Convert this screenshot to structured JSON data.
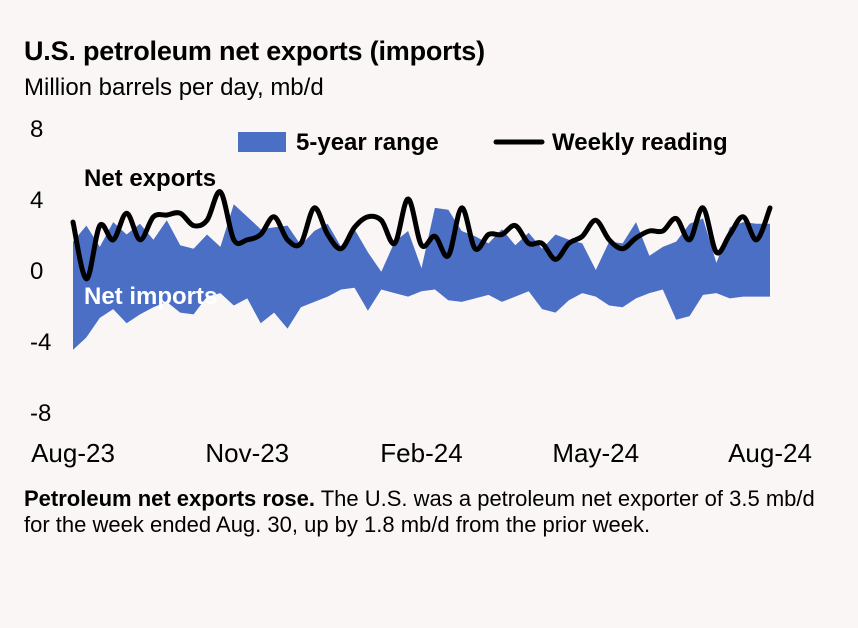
{
  "title": "U.S. petroleum net exports (imports)",
  "subtitle": "Million barrels per day, mb/d",
  "caption_bold": "Petroleum net exports rose.",
  "caption_text": " The U.S. was a petroleum net exporter of 3.5 mb/d for the week ended Aug. 30, up by 1.8 mb/d from the prior week.",
  "colors": {
    "range": "#4a6fc4",
    "line": "#000000",
    "background": "#fbf6f6"
  },
  "chart_data": {
    "type": "area",
    "title": "U.S. petroleum net exports (imports)",
    "ylabel": "Million barrels per day, mb/d",
    "ylim": [
      -8,
      8
    ],
    "yticks": [
      8,
      4,
      0,
      -4,
      -8
    ],
    "xtick_labels": [
      "Aug-23",
      "Nov-23",
      "Feb-24",
      "May-24",
      "Aug-24"
    ],
    "xtick_weeks": [
      0,
      13,
      26,
      39,
      52
    ],
    "annotations": [
      "Net exports",
      "Net imports"
    ],
    "legend": [
      "5-year range",
      "Weekly reading"
    ],
    "series": [
      {
        "name": "5-year range (upper)",
        "x": [
          0,
          1,
          2,
          3,
          4,
          5,
          6,
          7,
          8,
          9,
          10,
          11,
          12,
          13,
          14,
          15,
          16,
          17,
          18,
          19,
          20,
          21,
          22,
          23,
          24,
          25,
          26,
          27,
          28,
          29,
          30,
          31,
          32,
          33,
          34,
          35,
          36,
          37,
          38,
          39,
          40,
          41,
          42,
          43,
          44,
          45,
          46,
          47,
          48,
          49,
          50,
          51,
          52
        ],
        "values": [
          1.6,
          2.5,
          1.3,
          2.7,
          2.0,
          2.6,
          1.7,
          2.8,
          1.4,
          1.2,
          2.0,
          1.3,
          3.7,
          3.0,
          2.3,
          2.4,
          2.5,
          1.4,
          2.2,
          2.6,
          1.3,
          2.3,
          1.0,
          -0.1,
          1.6,
          2.2,
          0.1,
          3.5,
          3.4,
          2.2,
          1.9,
          1.5,
          2.3,
          1.4,
          2.1,
          1.2,
          2.0,
          1.7,
          1.5,
          0.0,
          1.6,
          1.5,
          2.7,
          0.8,
          1.3,
          1.6,
          2.6,
          2.9,
          0.4,
          2.4,
          2.7,
          2.6,
          2.6
        ]
      },
      {
        "name": "5-year range (lower)",
        "x": [
          0,
          1,
          2,
          3,
          4,
          5,
          6,
          7,
          8,
          9,
          10,
          11,
          12,
          13,
          14,
          15,
          16,
          17,
          18,
          19,
          20,
          21,
          22,
          23,
          24,
          25,
          26,
          27,
          28,
          29,
          30,
          31,
          32,
          33,
          34,
          35,
          36,
          37,
          38,
          39,
          40,
          41,
          42,
          43,
          44,
          45,
          46,
          47,
          48,
          49,
          50,
          51,
          52
        ],
        "values": [
          -4.5,
          -3.8,
          -2.7,
          -2.2,
          -3.0,
          -2.5,
          -2.1,
          -1.8,
          -2.4,
          -2.5,
          -1.5,
          -1.3,
          -2.0,
          -1.6,
          -3.0,
          -2.4,
          -3.3,
          -2.1,
          -1.8,
          -1.5,
          -1.1,
          -1.0,
          -2.3,
          -1.1,
          -1.3,
          -1.5,
          -1.2,
          -1.1,
          -1.7,
          -1.8,
          -1.6,
          -1.4,
          -1.8,
          -1.5,
          -1.2,
          -2.2,
          -2.4,
          -1.7,
          -1.3,
          -1.5,
          -2.0,
          -2.1,
          -1.6,
          -1.3,
          -1.1,
          -2.8,
          -2.6,
          -1.4,
          -1.3,
          -1.6,
          -1.5,
          -1.5,
          -1.5
        ]
      },
      {
        "name": "Weekly reading",
        "x": [
          0,
          1,
          2,
          3,
          4,
          5,
          6,
          7,
          8,
          9,
          10,
          11,
          12,
          13,
          14,
          15,
          16,
          17,
          18,
          19,
          20,
          21,
          22,
          23,
          24,
          25,
          26,
          27,
          28,
          29,
          30,
          31,
          32,
          33,
          34,
          35,
          36,
          37,
          38,
          39,
          40,
          41,
          42,
          43,
          44,
          45,
          46,
          47,
          48,
          49,
          50,
          51,
          52
        ],
        "values": [
          2.7,
          -0.5,
          2.5,
          1.7,
          3.2,
          1.7,
          3.0,
          3.1,
          3.2,
          2.5,
          2.8,
          4.4,
          1.7,
          1.7,
          2.0,
          3.0,
          1.7,
          1.5,
          3.5,
          2.0,
          1.2,
          2.4,
          3.0,
          2.8,
          1.5,
          4.0,
          1.4,
          1.9,
          0.8,
          3.5,
          1.2,
          2.0,
          2.0,
          2.5,
          1.5,
          1.5,
          0.6,
          1.5,
          1.9,
          2.8,
          1.7,
          1.2,
          1.8,
          2.2,
          2.2,
          2.9,
          1.7,
          3.5,
          1.0,
          2.0,
          3.0,
          1.7,
          3.5
        ]
      }
    ]
  }
}
